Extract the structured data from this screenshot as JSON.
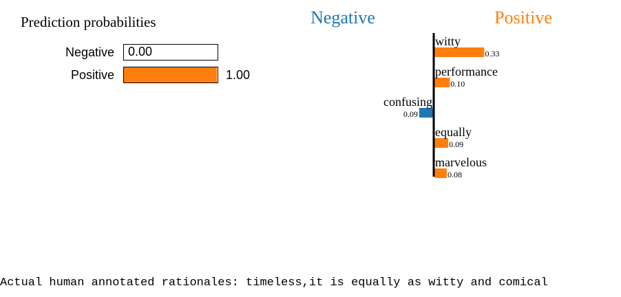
{
  "prediction": {
    "title": "Prediction probabilities",
    "classes": [
      {
        "label": "Negative",
        "value_text": "0.00",
        "value": 0.0,
        "color": "#1f77b4"
      },
      {
        "label": "Positive",
        "value_text": "1.00",
        "value": 1.0,
        "color": "#ff7f0e"
      }
    ]
  },
  "chart_data": {
    "type": "bar",
    "orientation": "horizontal",
    "class_labels": {
      "negative": "Negative",
      "positive": "Positive"
    },
    "colors": {
      "negative": "#1f77b4",
      "positive": "#ff7f0e"
    },
    "features": [
      {
        "word": "witty",
        "weight": 0.33,
        "label": "0.33"
      },
      {
        "word": "performance",
        "weight": 0.1,
        "label": "0.10"
      },
      {
        "word": "confusing",
        "weight": -0.09,
        "label": "0.09"
      },
      {
        "word": "equally",
        "weight": 0.09,
        "label": "0.09"
      },
      {
        "word": "marvelous",
        "weight": 0.08,
        "label": "0.08"
      }
    ]
  },
  "rationale": {
    "text": "Actual human annotated rationales: timeless,it is equally as witty and comical"
  }
}
